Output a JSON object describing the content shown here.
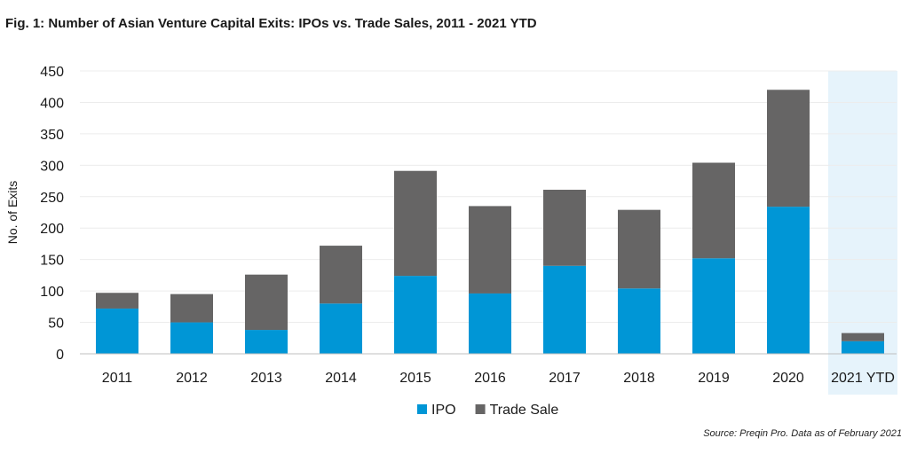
{
  "title": "Fig. 1: Number of Asian Venture Capital Exits: IPOs vs. Trade Sales, 2011 - 2021 YTD",
  "source": "Source: Preqin Pro. Data as of February 2021",
  "chart_data": {
    "type": "bar",
    "stacked": true,
    "title": "Fig. 1: Number of Asian Venture Capital Exits: IPOs vs. Trade Sales, 2011 - 2021 YTD",
    "xlabel": "",
    "ylabel": "No. of Exits",
    "ylim": [
      0,
      450
    ],
    "yticks": [
      0,
      50,
      100,
      150,
      200,
      250,
      300,
      350,
      400,
      450
    ],
    "grid": true,
    "legend": "bottom-center",
    "highlighted_category": "2021 YTD",
    "categories": [
      "2011",
      "2012",
      "2013",
      "2014",
      "2015",
      "2016",
      "2017",
      "2018",
      "2019",
      "2020",
      "2021 YTD"
    ],
    "series": [
      {
        "name": "IPO",
        "color": "#0096d6",
        "values": [
          72,
          50,
          38,
          80,
          124,
          96,
          140,
          104,
          152,
          234,
          20
        ]
      },
      {
        "name": "Trade Sale",
        "color": "#666565",
        "values": [
          25,
          45,
          88,
          92,
          167,
          139,
          121,
          125,
          152,
          186,
          13
        ]
      }
    ],
    "highlight_color": "#e6f3fb"
  }
}
